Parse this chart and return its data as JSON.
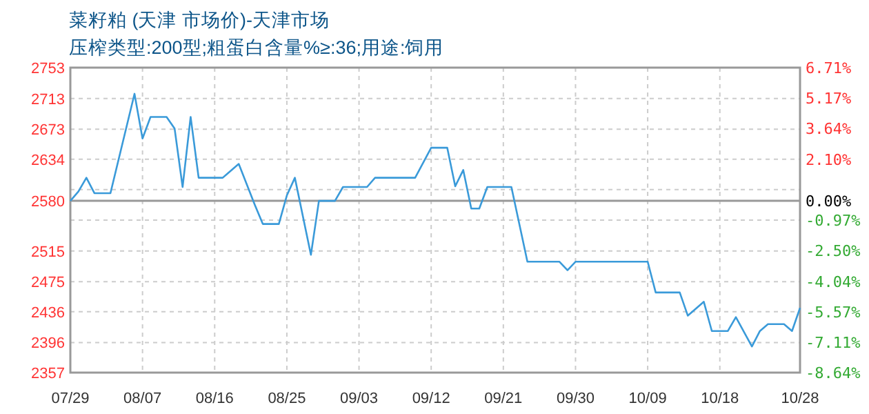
{
  "chart_data": {
    "type": "line",
    "title": "菜籽粕 (天津 市场价)-天津市场",
    "subtitle": "压榨类型:200型;粗蛋白含量%≥:36;用途:饲用",
    "x": [
      "--07-29",
      "--07-30",
      "--07-31",
      "--08-01",
      "--08-03",
      "--08-06",
      "--08-07",
      "--08-08",
      "--08-10",
      "--08-11",
      "--08-12",
      "--08-13",
      "--08-14",
      "--08-17",
      "--08-19",
      "--08-21",
      "--08-22",
      "--08-24",
      "--08-25",
      "--08-26",
      "--08-28",
      "--08-29",
      "--08-31",
      "--09-01",
      "--09-04",
      "--09-05",
      "--09-10",
      "--09-12",
      "--09-14",
      "--09-15",
      "--09-16",
      "--09-17",
      "--09-18",
      "--09-19",
      "--09-22",
      "--09-24",
      "--09-28",
      "--09-29",
      "--09-30",
      "--10-09",
      "--10-10",
      "--10-13",
      "--10-14",
      "--10-16",
      "--10-17",
      "--10-19",
      "--10-20",
      "--10-22",
      "--10-23",
      "--10-24",
      "--10-26",
      "--10-27",
      "--10-28"
    ],
    "series": [
      {
        "color": "#3a9ad9",
        "values": [
          2580,
          2592,
          2610,
          2590,
          2590,
          2719,
          2661,
          2689,
          2689,
          2674,
          2598,
          2689,
          2610,
          2610,
          2628,
          2575,
          2550,
          2550,
          2587,
          2610,
          2510,
          2580,
          2580,
          2598,
          2598,
          2610,
          2610,
          2649,
          2649,
          2599,
          2620,
          2570,
          2570,
          2598,
          2598,
          2501,
          2501,
          2490,
          2501,
          2501,
          2461,
          2461,
          2431,
          2449,
          2411,
          2411,
          2429,
          2391,
          2411,
          2420,
          2420,
          2411,
          2441
        ]
      }
    ],
    "xlim": [
      "--07-29",
      "--10-28"
    ],
    "xticks": [
      {
        "value": "--07-29",
        "label": "07/29"
      },
      {
        "value": "--08-07",
        "label": "08/07"
      },
      {
        "value": "--08-16",
        "label": "08/16"
      },
      {
        "value": "--08-25",
        "label": "08/25"
      },
      {
        "value": "--09-03",
        "label": "09/03"
      },
      {
        "value": "--09-12",
        "label": "09/12"
      },
      {
        "value": "--09-21",
        "label": "09/21"
      },
      {
        "value": "--09-30",
        "label": "09/30"
      },
      {
        "value": "--10-09",
        "label": "10/09"
      },
      {
        "value": "--10-18",
        "label": "10/18"
      },
      {
        "value": "--10-28",
        "label": "10/28"
      }
    ],
    "ylim": [
      2357,
      2753
    ],
    "yticks": [
      2357,
      2396,
      2436,
      2475,
      2515,
      {
        "value": 2555,
        "label": null
      },
      2580,
      {
        "value": 2594.6,
        "label": null
      },
      2634,
      2673,
      2713,
      2753
    ],
    "y2lim": [
      -8.64,
      6.71
    ],
    "y2ticks": [
      {
        "value": 6.71,
        "label": "6.71%"
      },
      {
        "value": 5.17,
        "label": "5.17%"
      },
      {
        "value": 3.64,
        "label": "3.64%"
      },
      {
        "value": 2.1,
        "label": "2.10%"
      },
      {
        "value": 0,
        "label": "0.00%"
      },
      {
        "value": -0.97,
        "label": "-0.97%"
      },
      {
        "value": -2.5,
        "label": "-2.50%"
      },
      {
        "value": -4.04,
        "label": "-4.04%"
      },
      {
        "value": -5.57,
        "label": "-5.57%"
      },
      {
        "value": -7.11,
        "label": "-7.11%"
      },
      {
        "value": -8.64,
        "label": "-8.64%"
      }
    ],
    "ref_lines": [
      {
        "axis": "y",
        "value": 2580,
        "color": "#999999",
        "line_style": "solid"
      }
    ],
    "grid": true,
    "marker": "none",
    "line_style": "solid"
  }
}
